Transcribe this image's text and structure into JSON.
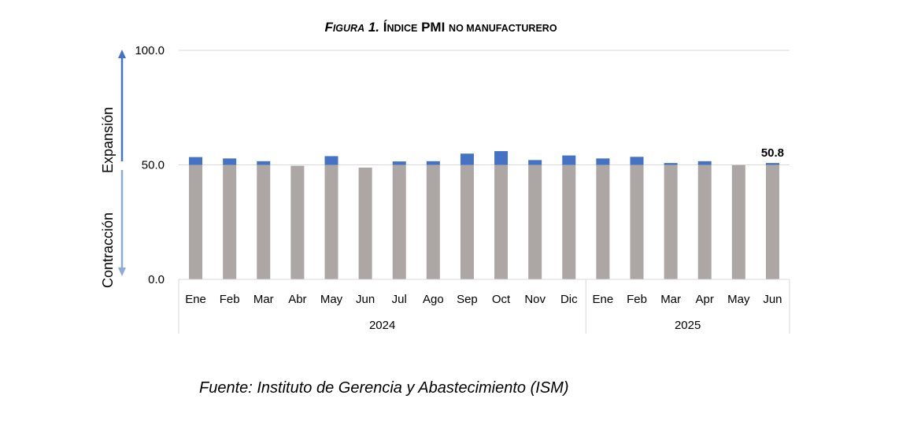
{
  "chart_data": {
    "type": "bar",
    "title": "Figura 1. Índice PMI no manufacturero",
    "title_parts": {
      "fig": "F",
      "fig_rest": "IGURA",
      "num": " 1. ",
      "i1": "Í",
      "i2": "NDICE",
      "pmi": " PMI ",
      "rest": "NO MANUFACTURERO"
    },
    "ylim": [
      0,
      100
    ],
    "yticks": [
      "0.0",
      "50.0",
      "100.0"
    ],
    "ylabel_up": "Expansión",
    "ylabel_down": "Contracción",
    "threshold": 50,
    "categories": [
      "Ene",
      "Feb",
      "Mar",
      "Abr",
      "May",
      "Jun",
      "Jul",
      "Ago",
      "Sep",
      "Oct",
      "Nov",
      "Dic",
      "Ene",
      "Feb",
      "Mar",
      "Apr",
      "May",
      "Jun"
    ],
    "values": [
      53.4,
      52.8,
      51.6,
      49.6,
      53.8,
      48.8,
      51.5,
      51.6,
      54.9,
      56.0,
      52.1,
      54.1,
      52.8,
      53.5,
      50.8,
      51.6,
      49.9,
      50.8
    ],
    "years": [
      {
        "label": "2024",
        "count": 12
      },
      {
        "label": "2025",
        "count": 6
      }
    ],
    "data_labels": [
      {
        "index": 17,
        "text": "50.8"
      }
    ],
    "colors": {
      "base": "#aca6a4",
      "above": "#4472c4",
      "arrow_up": "#4472c4",
      "arrow_down": "#8eaadb",
      "grid": "#d9d9d9"
    }
  },
  "source": "Fuente: Instituto de Gerencia y Abastecimiento (ISM)"
}
